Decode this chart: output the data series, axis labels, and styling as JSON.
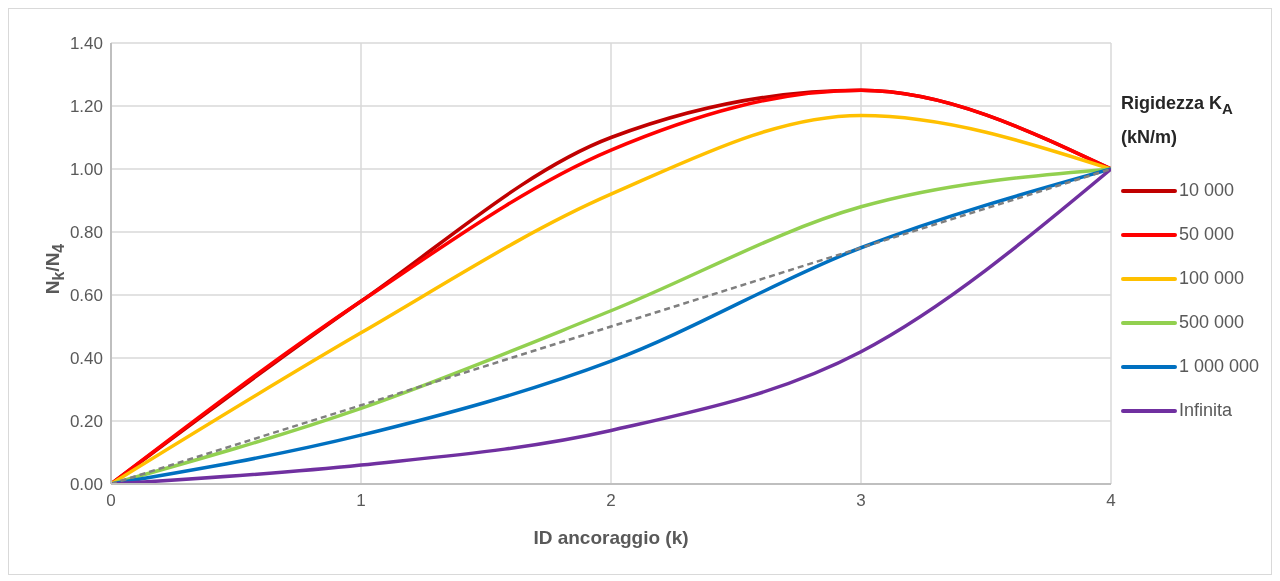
{
  "chart_data": {
    "type": "line",
    "xlabel": "ID ancoraggio (k)",
    "ylabel": "N$_{k}$/N$_{4}$",
    "legend_title": "Rigidezza K$_{A}$ (kN/m)",
    "legend": "right",
    "grid": true,
    "marker": "none",
    "x": [
      0,
      1,
      2,
      3,
      4
    ],
    "xlim": [
      0,
      4
    ],
    "xticks": [
      0,
      1,
      2,
      3,
      4
    ],
    "ylim": [
      0,
      1.4
    ],
    "yticks": [
      {
        "value": 0,
        "label": "0.00"
      },
      {
        "value": 0.2,
        "label": "0.20"
      },
      {
        "value": 0.4,
        "label": "0.40"
      },
      {
        "value": 0.6,
        "label": "0.60"
      },
      {
        "value": 0.8,
        "label": "0.80"
      },
      {
        "value": 1,
        "label": "1.00"
      },
      {
        "value": 1.2,
        "label": "1.20"
      },
      {
        "value": 1.4,
        "label": "1.40"
      }
    ],
    "series": [
      {
        "name": "10 000",
        "color": "#c00000",
        "values": [
          0,
          0.58,
          1.1,
          1.25,
          1
        ]
      },
      {
        "name": "50 000",
        "color": "#ff0000",
        "values": [
          0,
          0.58,
          1.06,
          1.25,
          1
        ]
      },
      {
        "name": "100 000",
        "color": "#ffc000",
        "values": [
          0,
          0.48,
          0.92,
          1.17,
          1
        ]
      },
      {
        "name": "500 000",
        "color": "#92d050",
        "values": [
          0,
          0.24,
          0.55,
          0.88,
          1
        ]
      },
      {
        "name": "1 000 000",
        "color": "#0070c0",
        "values": [
          0,
          0.155,
          0.39,
          0.75,
          1
        ]
      },
      {
        "name": "Infinita",
        "color": "#7030a0",
        "values": [
          0,
          0.06,
          0.17,
          0.42,
          1
        ]
      },
      {
        "color": "#7f7f7f",
        "line_style": "dashed",
        "values": [
          0,
          0.25,
          0.5,
          0.75,
          1
        ]
      }
    ]
  }
}
